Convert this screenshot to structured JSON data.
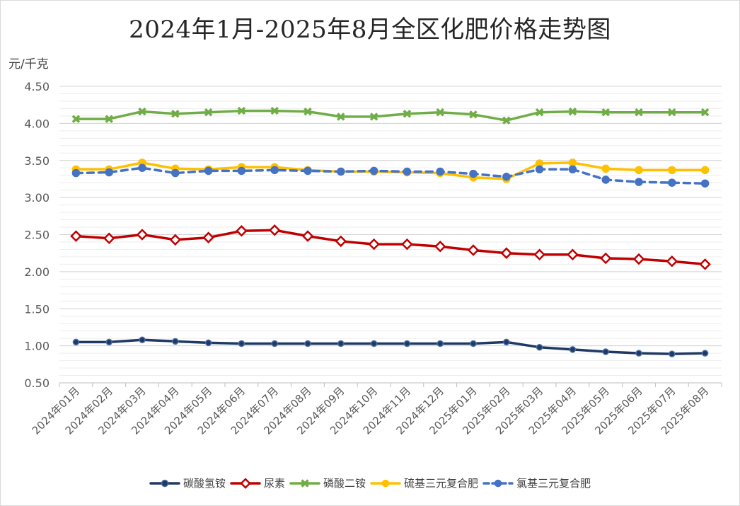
{
  "chart_data": {
    "type": "line",
    "title": "2024年1月-2025年8月全区化肥价格走势图",
    "ylabel": "元/千克",
    "xlabel": "",
    "ylim": [
      0.5,
      4.5
    ],
    "yticks": [
      "0.50",
      "1.00",
      "1.50",
      "2.00",
      "2.50",
      "3.00",
      "3.50",
      "4.00",
      "4.50"
    ],
    "grid": true,
    "legend_position": "bottom",
    "categories": [
      "2024年01月",
      "2024年02月",
      "2024年03月",
      "2024年04月",
      "2024年05月",
      "2024年06月",
      "2024年07月",
      "2024年08月",
      "2024年09月",
      "2024年10月",
      "2024年11月",
      "2024年12月",
      "2025年01月",
      "2025年02月",
      "2025年03月",
      "2025年04月",
      "2025年05月",
      "2025年06月",
      "2025年07月",
      "2025年08月"
    ],
    "series": [
      {
        "name": "碳酸氢铵",
        "color": "#1f3864",
        "marker": "circle",
        "dash": false,
        "values": [
          1.05,
          1.05,
          1.08,
          1.06,
          1.04,
          1.03,
          1.03,
          1.03,
          1.03,
          1.03,
          1.03,
          1.03,
          1.03,
          1.05,
          0.98,
          0.95,
          0.92,
          0.9,
          0.89,
          0.9
        ]
      },
      {
        "name": "尿素",
        "color": "#c00000",
        "marker": "diamond",
        "dash": false,
        "values": [
          2.48,
          2.45,
          2.5,
          2.43,
          2.46,
          2.55,
          2.56,
          2.48,
          2.41,
          2.37,
          2.37,
          2.34,
          2.29,
          2.25,
          2.23,
          2.23,
          2.18,
          2.17,
          2.14,
          2.1
        ]
      },
      {
        "name": "磷酸二铵",
        "color": "#70ad47",
        "marker": "cross",
        "dash": false,
        "values": [
          4.06,
          4.06,
          4.16,
          4.13,
          4.15,
          4.17,
          4.17,
          4.16,
          4.09,
          4.09,
          4.13,
          4.15,
          4.12,
          4.04,
          4.15,
          4.16,
          4.15,
          4.15,
          4.15,
          4.15
        ]
      },
      {
        "name": "硫基三元复合肥",
        "color": "#ffc000",
        "marker": "circle",
        "dash": false,
        "values": [
          3.38,
          3.38,
          3.47,
          3.39,
          3.38,
          3.41,
          3.41,
          3.37,
          3.35,
          3.35,
          3.34,
          3.33,
          3.27,
          3.25,
          3.46,
          3.47,
          3.39,
          3.37,
          3.37,
          3.37
        ]
      },
      {
        "name": "氯基三元复合肥",
        "color": "#4472c4",
        "marker": "circle",
        "dash": true,
        "values": [
          3.33,
          3.34,
          3.4,
          3.33,
          3.36,
          3.36,
          3.37,
          3.36,
          3.35,
          3.36,
          3.35,
          3.35,
          3.32,
          3.28,
          3.38,
          3.38,
          3.24,
          3.21,
          3.2,
          3.19
        ]
      }
    ]
  }
}
